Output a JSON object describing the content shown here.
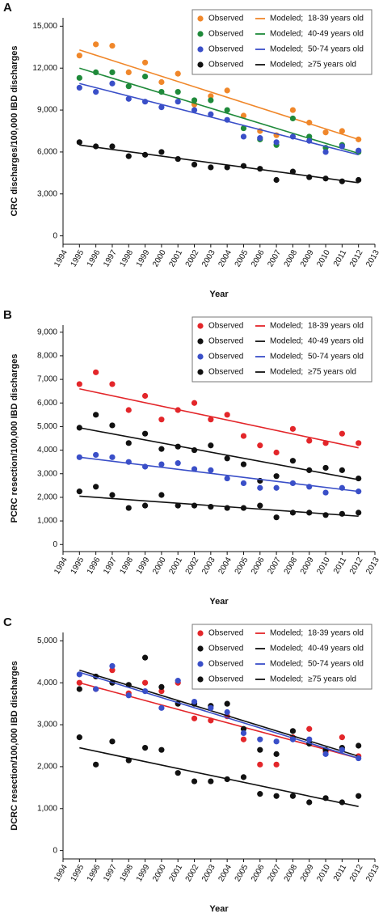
{
  "chart_data": [
    {
      "type": "scatter-fit",
      "panel": "A",
      "y_label": "CRC discharges/100,000 IBD discharges",
      "x_label": "Year",
      "legend_observed": "Observed",
      "legend_modeled": "Modeled;",
      "legend": "top-right",
      "grid": false,
      "x": [
        1995,
        1996,
        1997,
        1998,
        1999,
        2000,
        2001,
        2002,
        2003,
        2004,
        2005,
        2006,
        2007,
        2008,
        2009,
        2010,
        2011,
        2012
      ],
      "xlim": [
        1994,
        2013
      ],
      "xticks": [
        1994,
        1995,
        1996,
        1997,
        1998,
        1999,
        2000,
        2001,
        2002,
        2003,
        2004,
        2005,
        2006,
        2007,
        2008,
        2009,
        2010,
        2011,
        2012,
        2013
      ],
      "ylim": [
        -600,
        15600
      ],
      "yticks": [
        0,
        {
          "value": 3000,
          "label": "3,000"
        },
        {
          "value": 6000,
          "label": "6,000"
        },
        {
          "value": 9000,
          "label": "9,000"
        },
        {
          "value": 12000,
          "label": "12,000"
        },
        {
          "value": 15000,
          "label": "15,000"
        }
      ],
      "series": [
        {
          "name": "18-39 years old",
          "color": "#f0872a",
          "values": [
            12900,
            13700,
            13600,
            11700,
            12400,
            11000,
            11600,
            9400,
            10000,
            10400,
            8600,
            7500,
            7200,
            9000,
            8100,
            7400,
            7500,
            6900
          ],
          "modeled": [
            13300,
            6900
          ]
        },
        {
          "name": "40-49 years old",
          "color": "#1f8a3a",
          "values": [
            11300,
            11700,
            11700,
            10700,
            11400,
            10300,
            10300,
            9700,
            9700,
            9000,
            7700,
            6900,
            6500,
            8400,
            7100,
            6300,
            6500,
            6000
          ],
          "modeled": [
            12000,
            5900
          ]
        },
        {
          "name": "50-74 years old",
          "color": "#3a4fc8",
          "values": [
            10600,
            10300,
            10900,
            9800,
            9600,
            9200,
            9600,
            9000,
            8700,
            8300,
            7100,
            7000,
            6700,
            7100,
            6800,
            6000,
            6400,
            6100
          ],
          "modeled": [
            10900,
            5800
          ]
        },
        {
          "name": "≥75 years old",
          "color": "#111111",
          "values": [
            6700,
            6400,
            6400,
            5700,
            5800,
            6000,
            5500,
            5100,
            4900,
            4900,
            5000,
            4800,
            4000,
            4600,
            4200,
            4100,
            3900,
            4000
          ],
          "modeled": [
            6500,
            3800
          ]
        }
      ]
    },
    {
      "type": "scatter-fit",
      "panel": "B",
      "y_label": "PCRC resection/100,000 IBD discharges",
      "x_label": "Year",
      "legend_observed": "Observed",
      "legend_modeled": "Modeled;",
      "legend": "top-right",
      "grid": false,
      "x": [
        1995,
        1996,
        1997,
        1998,
        1999,
        2000,
        2001,
        2002,
        2003,
        2004,
        2005,
        2006,
        2007,
        2008,
        2009,
        2010,
        2011,
        2012
      ],
      "xlim": [
        1994,
        2013
      ],
      "xticks": [
        1994,
        1995,
        1996,
        1997,
        1998,
        1999,
        2000,
        2001,
        2002,
        2003,
        2004,
        2005,
        2006,
        2007,
        2008,
        2009,
        2010,
        2011,
        2012,
        2013
      ],
      "ylim": [
        -300,
        9300
      ],
      "yticks": [
        0,
        {
          "value": 1000,
          "label": "1,000"
        },
        {
          "value": 2000,
          "label": "2,000"
        },
        {
          "value": 3000,
          "label": "3,000"
        },
        {
          "value": 4000,
          "label": "4,000"
        },
        {
          "value": 5000,
          "label": "5,000"
        },
        {
          "value": 6000,
          "label": "6,000"
        },
        {
          "value": 7000,
          "label": "7,000"
        },
        {
          "value": 8000,
          "label": "8,000"
        },
        {
          "value": 9000,
          "label": "9,000"
        }
      ],
      "series": [
        {
          "name": "18-39 years old",
          "color": "#e3262a",
          "values": [
            6800,
            7300,
            6800,
            5700,
            6300,
            5300,
            5700,
            6000,
            5300,
            5500,
            4600,
            4200,
            3900,
            4900,
            4400,
            4300,
            4700,
            4300
          ],
          "modeled": [
            6600,
            4100
          ]
        },
        {
          "name": "40-49 years old",
          "color": "#111111",
          "values": [
            4950,
            5500,
            5050,
            4300,
            4700,
            4050,
            4150,
            4000,
            4200,
            3650,
            3400,
            2700,
            2900,
            3550,
            3150,
            3250,
            3150,
            2800
          ],
          "modeled": [
            4950,
            2750
          ]
        },
        {
          "name": "50-74 years old",
          "color": "#3a4fc8",
          "values": [
            3700,
            3800,
            3700,
            3500,
            3300,
            3400,
            3450,
            3200,
            3150,
            2800,
            2600,
            2400,
            2400,
            2600,
            2450,
            2200,
            2400,
            2250
          ],
          "modeled": [
            3700,
            2250
          ]
        },
        {
          "name": "≥75 years old",
          "color": "#111111",
          "values": [
            2250,
            2450,
            2100,
            1550,
            1650,
            2100,
            1650,
            1650,
            1600,
            1550,
            1550,
            1650,
            1150,
            1350,
            1350,
            1250,
            1300,
            1350
          ],
          "modeled": [
            2050,
            1200
          ]
        }
      ]
    },
    {
      "type": "scatter-fit",
      "panel": "C",
      "y_label": "DCRC resection/100,000 IBD discharges",
      "x_label": "Year",
      "legend_observed": "Observed",
      "legend_modeled": "Modeled;",
      "legend": "top-right",
      "grid": false,
      "x": [
        1995,
        1996,
        1997,
        1998,
        1999,
        2000,
        2001,
        2002,
        2003,
        2004,
        2005,
        2006,
        2007,
        2008,
        2009,
        2010,
        2011,
        2012
      ],
      "xlim": [
        1994,
        2013
      ],
      "xticks": [
        1994,
        1995,
        1996,
        1997,
        1998,
        1999,
        2000,
        2001,
        2002,
        2003,
        2004,
        2005,
        2006,
        2007,
        2008,
        2009,
        2010,
        2011,
        2012,
        2013
      ],
      "ylim": [
        -200,
        5200
      ],
      "yticks": [
        0,
        {
          "value": 1000,
          "label": "1,000"
        },
        {
          "value": 2000,
          "label": "2,000"
        },
        {
          "value": 3000,
          "label": "3,000"
        },
        {
          "value": 4000,
          "label": "4,000"
        },
        {
          "value": 5000,
          "label": "5,000"
        }
      ],
      "series": [
        {
          "name": "18-39 years old",
          "color": "#e3262a",
          "values": [
            4000,
            3850,
            4300,
            3750,
            4000,
            3800,
            4000,
            3150,
            3100,
            3200,
            2650,
            2050,
            2050,
            2700,
            2900,
            2350,
            2700,
            2250
          ],
          "modeled": [
            4000,
            2200
          ]
        },
        {
          "name": "40-49 years old",
          "color": "#111111",
          "values": [
            3850,
            4150,
            4000,
            3950,
            4600,
            3900,
            3500,
            3500,
            3450,
            3500,
            2900,
            2400,
            2300,
            2850,
            2550,
            2400,
            2450,
            2500
          ],
          "modeled": [
            4300,
            2250
          ]
        },
        {
          "name": "50-74 years old",
          "color": "#3a4fc8",
          "values": [
            4200,
            3850,
            4400,
            3700,
            3800,
            3400,
            4050,
            3550,
            3400,
            3300,
            2800,
            2650,
            2600,
            2650,
            2650,
            2300,
            2400,
            2200
          ],
          "modeled": [
            4250,
            2200
          ]
        },
        {
          "name": "≥75 years old",
          "color": "#111111",
          "values": [
            2700,
            2050,
            2600,
            2150,
            2450,
            2400,
            1850,
            1650,
            1650,
            1700,
            1750,
            1350,
            1300,
            1300,
            1150,
            1250,
            1150,
            1300
          ],
          "modeled": [
            2450,
            1050
          ]
        }
      ]
    }
  ]
}
